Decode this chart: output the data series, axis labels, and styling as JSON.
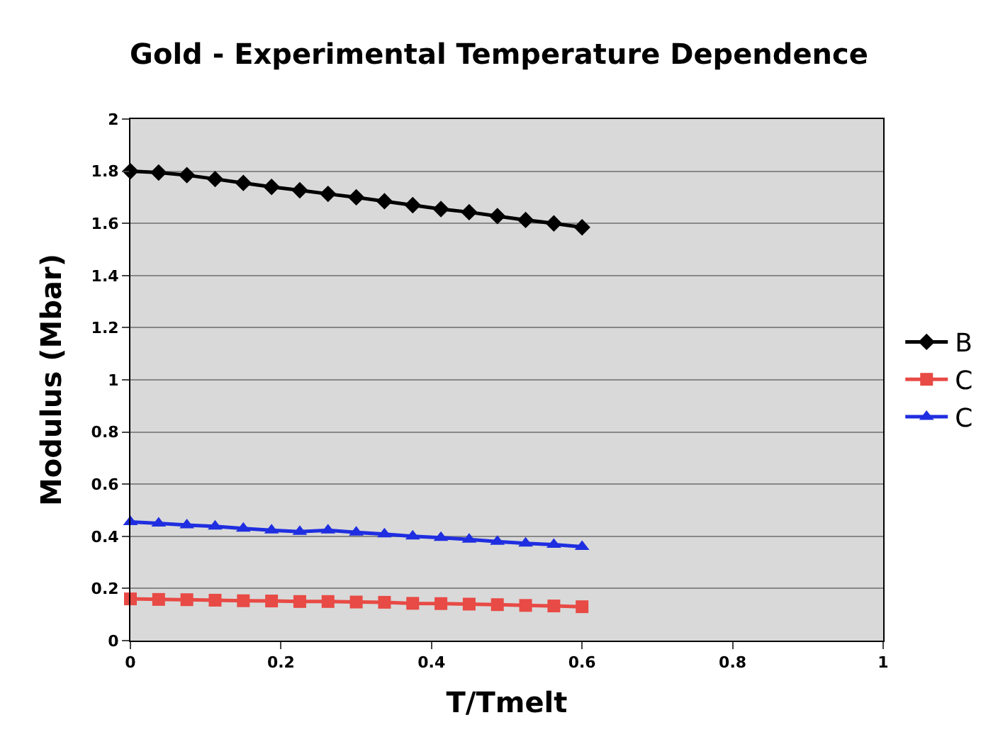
{
  "chart_data": {
    "type": "line",
    "title": "Gold - Experimental Temperature Dependence",
    "xlabel": "T/Tmelt",
    "ylabel": "Modulus (Mbar)",
    "x": [
      0,
      0.0375,
      0.075,
      0.1125,
      0.15,
      0.1875,
      0.225,
      0.2625,
      0.3,
      0.3375,
      0.375,
      0.4125,
      0.45,
      0.4875,
      0.525,
      0.5625,
      0.6
    ],
    "series": [
      {
        "name": "B",
        "color": "#000000",
        "marker": "diamond",
        "values": [
          1.8,
          1.795,
          1.785,
          1.77,
          1.755,
          1.74,
          1.727,
          1.713,
          1.7,
          1.685,
          1.67,
          1.655,
          1.643,
          1.628,
          1.613,
          1.6,
          1.585
        ]
      },
      {
        "name": "C",
        "color": "#e84a45",
        "marker": "square",
        "values": [
          0.16,
          0.158,
          0.157,
          0.155,
          0.153,
          0.152,
          0.15,
          0.15,
          0.148,
          0.147,
          0.143,
          0.142,
          0.14,
          0.138,
          0.135,
          0.133,
          0.13
        ]
      },
      {
        "name": "C",
        "color": "#1f2ee0",
        "marker": "triangle",
        "values": [
          0.455,
          0.45,
          0.443,
          0.438,
          0.43,
          0.423,
          0.418,
          0.423,
          0.415,
          0.408,
          0.4,
          0.395,
          0.388,
          0.38,
          0.373,
          0.368,
          0.36
        ]
      }
    ],
    "xlim": [
      0,
      1
    ],
    "xticks": [
      0,
      0.2,
      0.4,
      0.6,
      0.8,
      1
    ],
    "ylim": [
      0,
      2
    ],
    "yticks": [
      0,
      0.2,
      0.4,
      0.6,
      0.8,
      1,
      1.2,
      1.4,
      1.6,
      1.8,
      2
    ],
    "grid": "y",
    "legend": "right",
    "line_style": "solid"
  }
}
